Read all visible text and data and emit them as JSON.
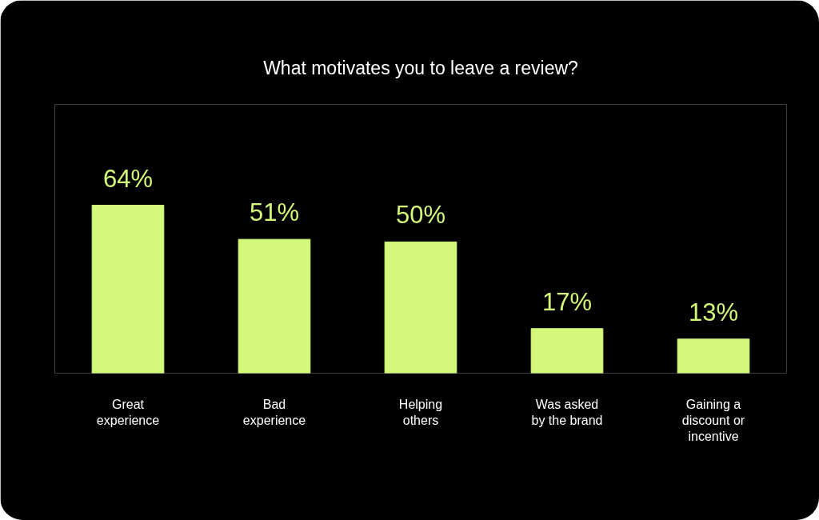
{
  "chart_data": {
    "type": "bar",
    "title": "What motivates you to leave a review?",
    "categories": [
      "Great experience",
      "Bad experience",
      "Helping others",
      "Was asked by the brand",
      "Gaining a discount or incentive"
    ],
    "values": [
      64,
      51,
      50,
      17,
      13
    ],
    "color": "#d4f97a",
    "value_labels": [
      "64%",
      "51%",
      "50%",
      "17%",
      "13%"
    ]
  }
}
